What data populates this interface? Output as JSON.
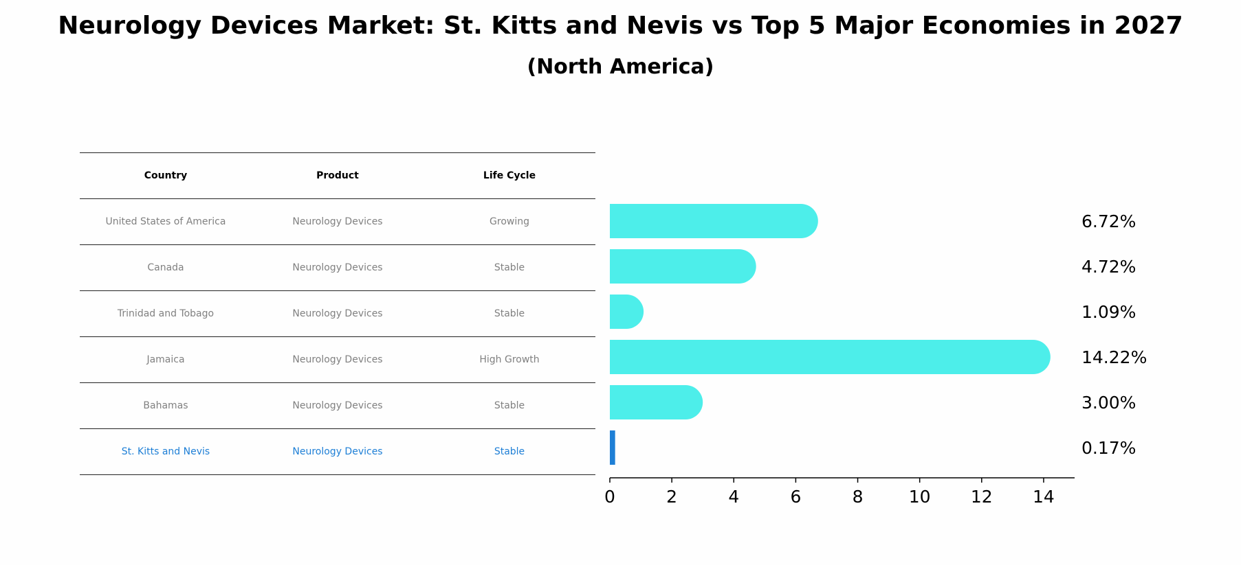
{
  "title": "Neurology Devices Market: St. Kitts and Nevis vs Top 5 Major Economies in 2027",
  "subtitle": "(North America)",
  "table": {
    "headers": [
      "Country",
      "Product",
      "Life Cycle"
    ],
    "rows": [
      [
        "United States of America",
        "Neurology Devices",
        "Growing"
      ],
      [
        "Canada",
        "Neurology Devices",
        "Stable"
      ],
      [
        "Trinidad and Tobago",
        "Neurology Devices",
        "Stable"
      ],
      [
        "Jamaica",
        "Neurology Devices",
        "High Growth"
      ],
      [
        "Bahamas",
        "Neurology Devices",
        "Stable"
      ],
      [
        "St. Kitts and Nevis",
        "Neurology Devices",
        "Stable"
      ]
    ],
    "highlight_row": 5
  },
  "colors": {
    "bar": "#4deeea",
    "highlight": "#1e7fd6",
    "header_text": "#000000",
    "body_text": "#808080"
  },
  "chart_data": {
    "type": "bar",
    "orientation": "horizontal",
    "categories": [
      "United States of America",
      "Canada",
      "Trinidad and Tobago",
      "Jamaica",
      "Bahamas",
      "St. Kitts and Nevis"
    ],
    "values": [
      6.72,
      4.72,
      1.09,
      14.22,
      3.0,
      0.17
    ],
    "value_labels": [
      "6.72%",
      "4.72%",
      "1.09%",
      "14.22%",
      "3.00%",
      "0.17%"
    ],
    "xlim": [
      0,
      15
    ],
    "xticks": [
      0,
      2,
      4,
      6,
      8,
      10,
      12,
      14
    ],
    "highlight_index": 5,
    "grid": false
  }
}
